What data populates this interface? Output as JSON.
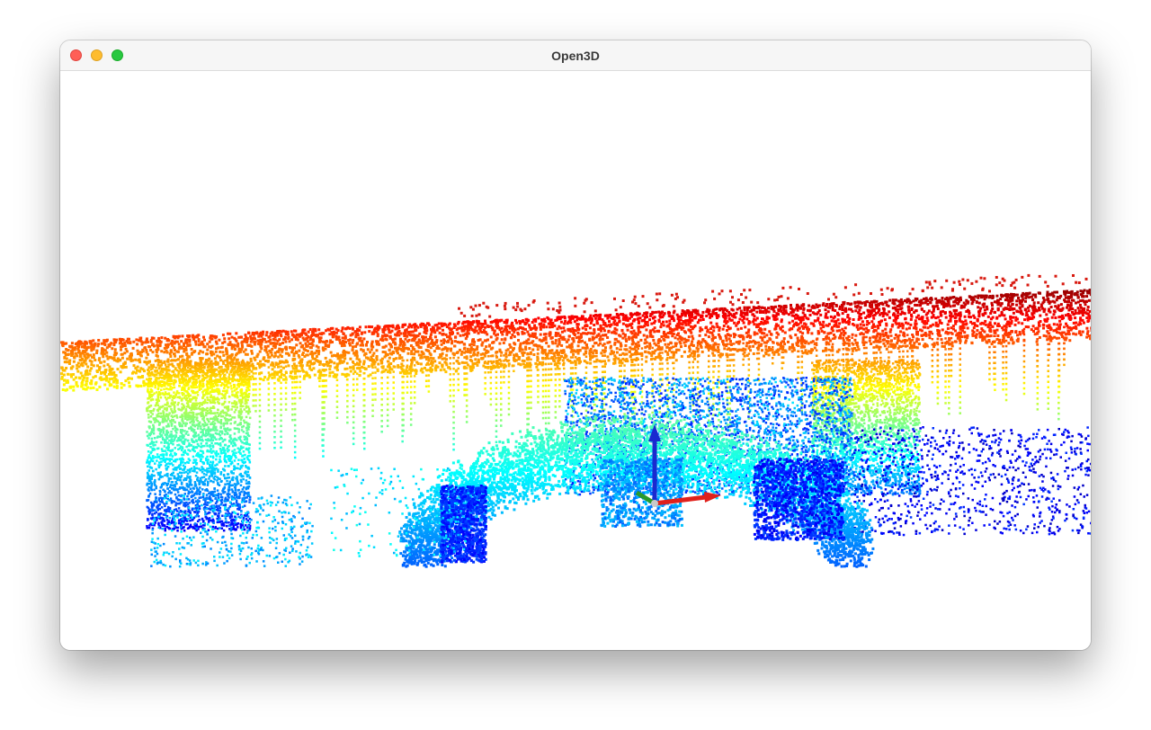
{
  "window": {
    "title": "Open3D"
  },
  "window_controls": {
    "close": "close-icon",
    "minimize": "minimize-icon",
    "maximize": "maximize-icon",
    "close_color": "#ff5f57",
    "minimize_color": "#febc2e",
    "maximize_color": "#28c840"
  },
  "viewport": {
    "background": "#ffffff",
    "colormap": "jet",
    "content": "point-cloud",
    "axes_colors": {
      "x": "#e0201b",
      "y": "#2a9a2a",
      "z": "#1a2ad0"
    }
  }
}
